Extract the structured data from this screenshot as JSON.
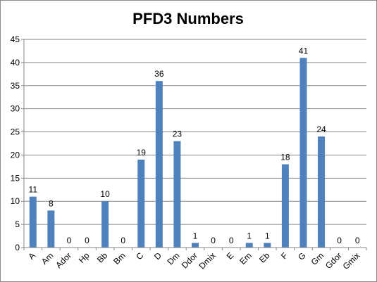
{
  "chart_data": {
    "type": "bar",
    "title": "PFD3 Numbers",
    "xlabel": "",
    "ylabel": "",
    "ylim": [
      0,
      45
    ],
    "yticks": [
      0,
      5,
      10,
      15,
      20,
      25,
      30,
      35,
      40,
      45
    ],
    "grid": true,
    "legend": "none",
    "bar_color": "#4f81bd",
    "categories": [
      "A",
      "Am",
      "Ador",
      "Hp",
      "Bb",
      "Bm",
      "C",
      "D",
      "Dm",
      "Ddor",
      "Dmix",
      "E",
      "Em",
      "Eb",
      "F",
      "G",
      "Gm",
      "Gdor",
      "Gmix"
    ],
    "values": [
      11,
      8,
      0,
      0,
      10,
      0,
      19,
      36,
      23,
      1,
      0,
      0,
      1,
      1,
      18,
      41,
      24,
      0,
      0
    ]
  }
}
